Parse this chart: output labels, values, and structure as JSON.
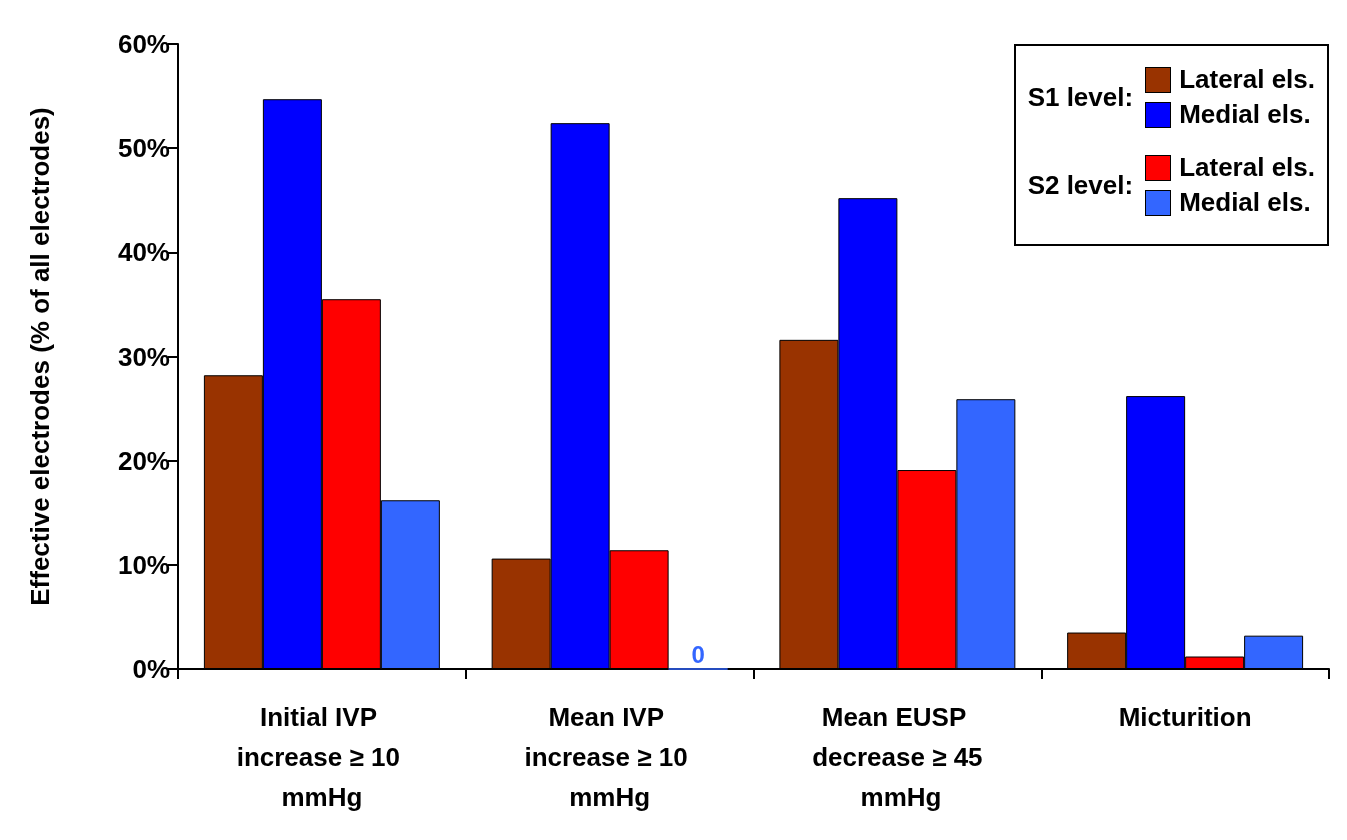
{
  "chart_data": {
    "type": "bar",
    "ylabel": "Effective electrodes (% of all electrodes)",
    "categories": [
      "Initial IVP increase ≥ 10 mmHg",
      "Mean IVP increase ≥ 10 mmHg",
      "Mean EUSP decrease ≥ 45 mmHg",
      "Micturition"
    ],
    "series": [
      {
        "name": "Lateral els.",
        "color": "#993300",
        "values": [
          28.2,
          10.6,
          31.6,
          3.5
        ]
      },
      {
        "name": "Medial els.",
        "color": "#0000ff",
        "values": [
          54.7,
          52.4,
          45.2,
          26.2
        ]
      },
      {
        "name": "Lateral els.",
        "color": "#ff0000",
        "values": [
          35.5,
          11.4,
          19.1,
          1.2
        ]
      },
      {
        "name": "Medial els.",
        "color": "#3366ff",
        "values": [
          16.2,
          0,
          25.9,
          3.2
        ],
        "value_labels": [
          null,
          "0",
          null,
          null
        ]
      }
    ],
    "ylim": [
      0,
      60
    ],
    "yticks": [
      {
        "value": 0,
        "label": "0%"
      },
      {
        "value": 10,
        "label": "10%"
      },
      {
        "value": 20,
        "label": "20%"
      },
      {
        "value": 30,
        "label": "30%"
      },
      {
        "value": 40,
        "label": "40%"
      },
      {
        "value": 50,
        "label": "50%"
      },
      {
        "value": 60,
        "label": "60%"
      }
    ],
    "annotations": [
      "S1 level:",
      "S2 level:"
    ],
    "legend": "top right",
    "grid": false
  }
}
